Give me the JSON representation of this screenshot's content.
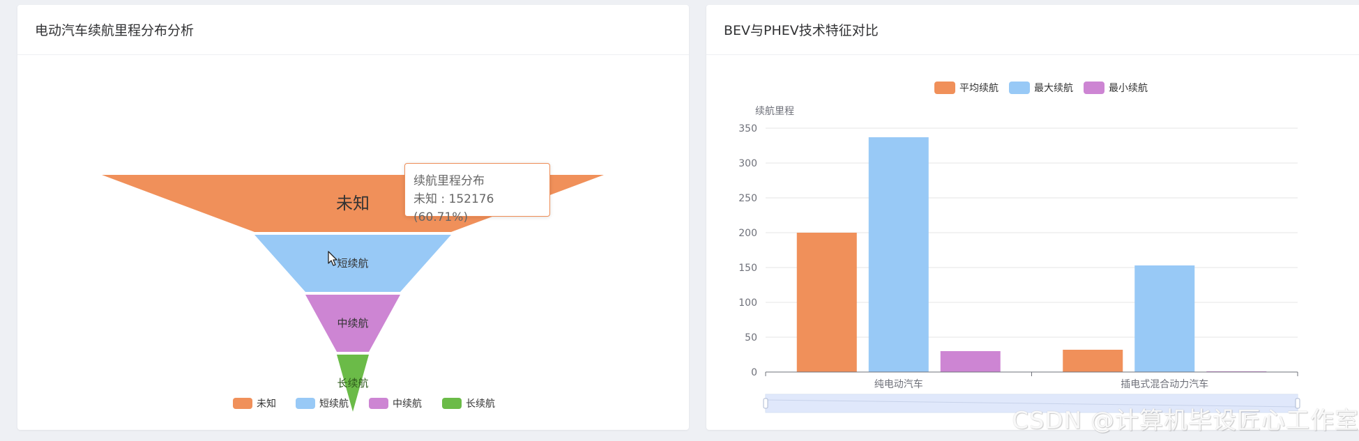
{
  "colors": {
    "orange": "#f0905a",
    "blue": "#98c9f6",
    "purple": "#cd85d3",
    "green": "#6bbb48",
    "tooltip_border": "#ee8c55"
  },
  "left_panel": {
    "title": "电动汽车续航里程分布分析",
    "tooltip": {
      "title": "续航里程分布",
      "value_text": "未知 : 152176 (60.71%)"
    }
  },
  "right_panel": {
    "title": "BEV与PHEV技术特征对比"
  },
  "watermark": "CSDN @计算机毕设匠心工作室",
  "chart_data": [
    {
      "type": "funnel",
      "categories": [
        "未知",
        "短续航",
        "中续航",
        "长续航"
      ],
      "series": [
        {
          "name": "续航里程分布",
          "values": [
            152176,
            null,
            null,
            null
          ]
        }
      ],
      "percent_shown": {
        "未知": 60.71
      },
      "legend": [
        "未知",
        "短续航",
        "中续航",
        "长续航"
      ],
      "legend_position": "bottom-center",
      "colors": [
        "#f0905a",
        "#98c9f6",
        "#cd85d3",
        "#6bbb48"
      ]
    },
    {
      "type": "bar",
      "categories": [
        "纯电动汽车",
        "插电式混合动力汽车"
      ],
      "series": [
        {
          "name": "平均续航",
          "values": [
            200,
            32
          ]
        },
        {
          "name": "最大续航",
          "values": [
            337,
            153
          ]
        },
        {
          "name": "最小续航",
          "values": [
            30,
            1
          ]
        }
      ],
      "ylabel": "续航里程",
      "ylim": [
        0,
        350
      ],
      "yticks": [
        0,
        50,
        100,
        150,
        200,
        250,
        300,
        350
      ],
      "grid": true,
      "legend_position": "top-center",
      "colors": [
        "#f0905a",
        "#98c9f6",
        "#cd85d3"
      ],
      "datazoom": true
    }
  ]
}
